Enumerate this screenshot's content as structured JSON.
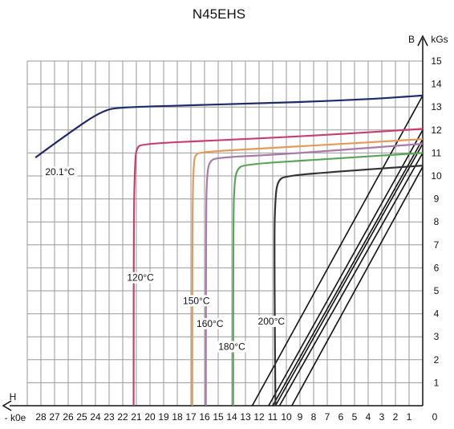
{
  "chart_data": {
    "type": "line",
    "title": "N45EHS",
    "xlabel_line1": "H",
    "xlabel_line2": "- k0e",
    "ylabel_symbol": "B",
    "ylabel_unit": "kGs",
    "x_ticks": [
      28,
      27,
      26,
      25,
      24,
      23,
      22,
      21,
      20,
      19,
      18,
      17,
      16,
      15,
      14,
      13,
      12,
      11,
      10,
      9,
      8,
      7,
      6,
      5,
      4,
      3,
      2,
      1
    ],
    "x_zero_label": "0",
    "y_ticks": [
      1,
      2,
      3,
      4,
      5,
      6,
      7,
      8,
      9,
      10,
      11,
      12,
      13,
      14,
      15
    ],
    "xlim": [
      0,
      29
    ],
    "ylim": [
      0,
      15
    ],
    "grid": true,
    "series": [
      {
        "name": "20.1°C",
        "color": "#1f2a6b",
        "points": [
          [
            28.4,
            10.8
          ],
          [
            26,
            11.85
          ],
          [
            23.5,
            12.85
          ],
          [
            22,
            13.0
          ],
          [
            15,
            13.1
          ],
          [
            5,
            13.3
          ],
          [
            0,
            13.5
          ]
        ]
      },
      {
        "name": "120°C",
        "color": "#c73f72",
        "points": [
          [
            21.2,
            0
          ],
          [
            21.2,
            8
          ],
          [
            21.1,
            10.5
          ],
          [
            21.0,
            11.2
          ],
          [
            20.6,
            11.4
          ],
          [
            15,
            11.55
          ],
          [
            8,
            11.75
          ],
          [
            0,
            12.05
          ]
        ]
      },
      {
        "name": "150°C",
        "color": "#e39a5a",
        "points": [
          [
            16.9,
            0
          ],
          [
            16.9,
            8.5
          ],
          [
            16.8,
            10.5
          ],
          [
            16.7,
            10.9
          ],
          [
            16.3,
            11.05
          ],
          [
            10,
            11.25
          ],
          [
            0,
            11.6
          ]
        ]
      },
      {
        "name": "160°C",
        "color": "#a97aa8",
        "points": [
          [
            15.9,
            0
          ],
          [
            15.9,
            8.5
          ],
          [
            15.8,
            10.2
          ],
          [
            15.6,
            10.65
          ],
          [
            15.1,
            10.8
          ],
          [
            10,
            10.95
          ],
          [
            0,
            11.4
          ]
        ]
      },
      {
        "name": "180°C",
        "color": "#5aa35a",
        "points": [
          [
            13.9,
            0
          ],
          [
            13.9,
            8
          ],
          [
            13.8,
            9.8
          ],
          [
            13.6,
            10.3
          ],
          [
            13.1,
            10.5
          ],
          [
            8,
            10.7
          ],
          [
            0,
            11.0
          ]
        ]
      },
      {
        "name": "200°C",
        "color": "#333333",
        "points": [
          [
            10.8,
            0
          ],
          [
            10.9,
            7
          ],
          [
            10.8,
            9.2
          ],
          [
            10.6,
            9.8
          ],
          [
            10.1,
            10.0
          ],
          [
            6,
            10.2
          ],
          [
            0,
            10.45
          ]
        ]
      }
    ],
    "load_lines": [
      {
        "x0": 12.5,
        "y1": 13.5
      },
      {
        "x0": 11.3,
        "y1": 12.0
      },
      {
        "x0": 11.0,
        "y1": 11.6
      },
      {
        "x0": 10.8,
        "y1": 11.4
      },
      {
        "x0": 10.5,
        "y1": 11.0
      },
      {
        "x0": 9.6,
        "y1": 10.4
      }
    ],
    "labels": [
      {
        "text": "20.1°C",
        "x": 26.6,
        "y": 10.1
      },
      {
        "text": "120°C",
        "x": 20.7,
        "y": 5.5
      },
      {
        "text": "150°C",
        "x": 16.6,
        "y": 4.5
      },
      {
        "text": "160°C",
        "x": 15.6,
        "y": 3.5
      },
      {
        "text": "180°C",
        "x": 14.0,
        "y": 2.5
      },
      {
        "text": "200°C",
        "x": 11.1,
        "y": 3.6
      }
    ]
  }
}
